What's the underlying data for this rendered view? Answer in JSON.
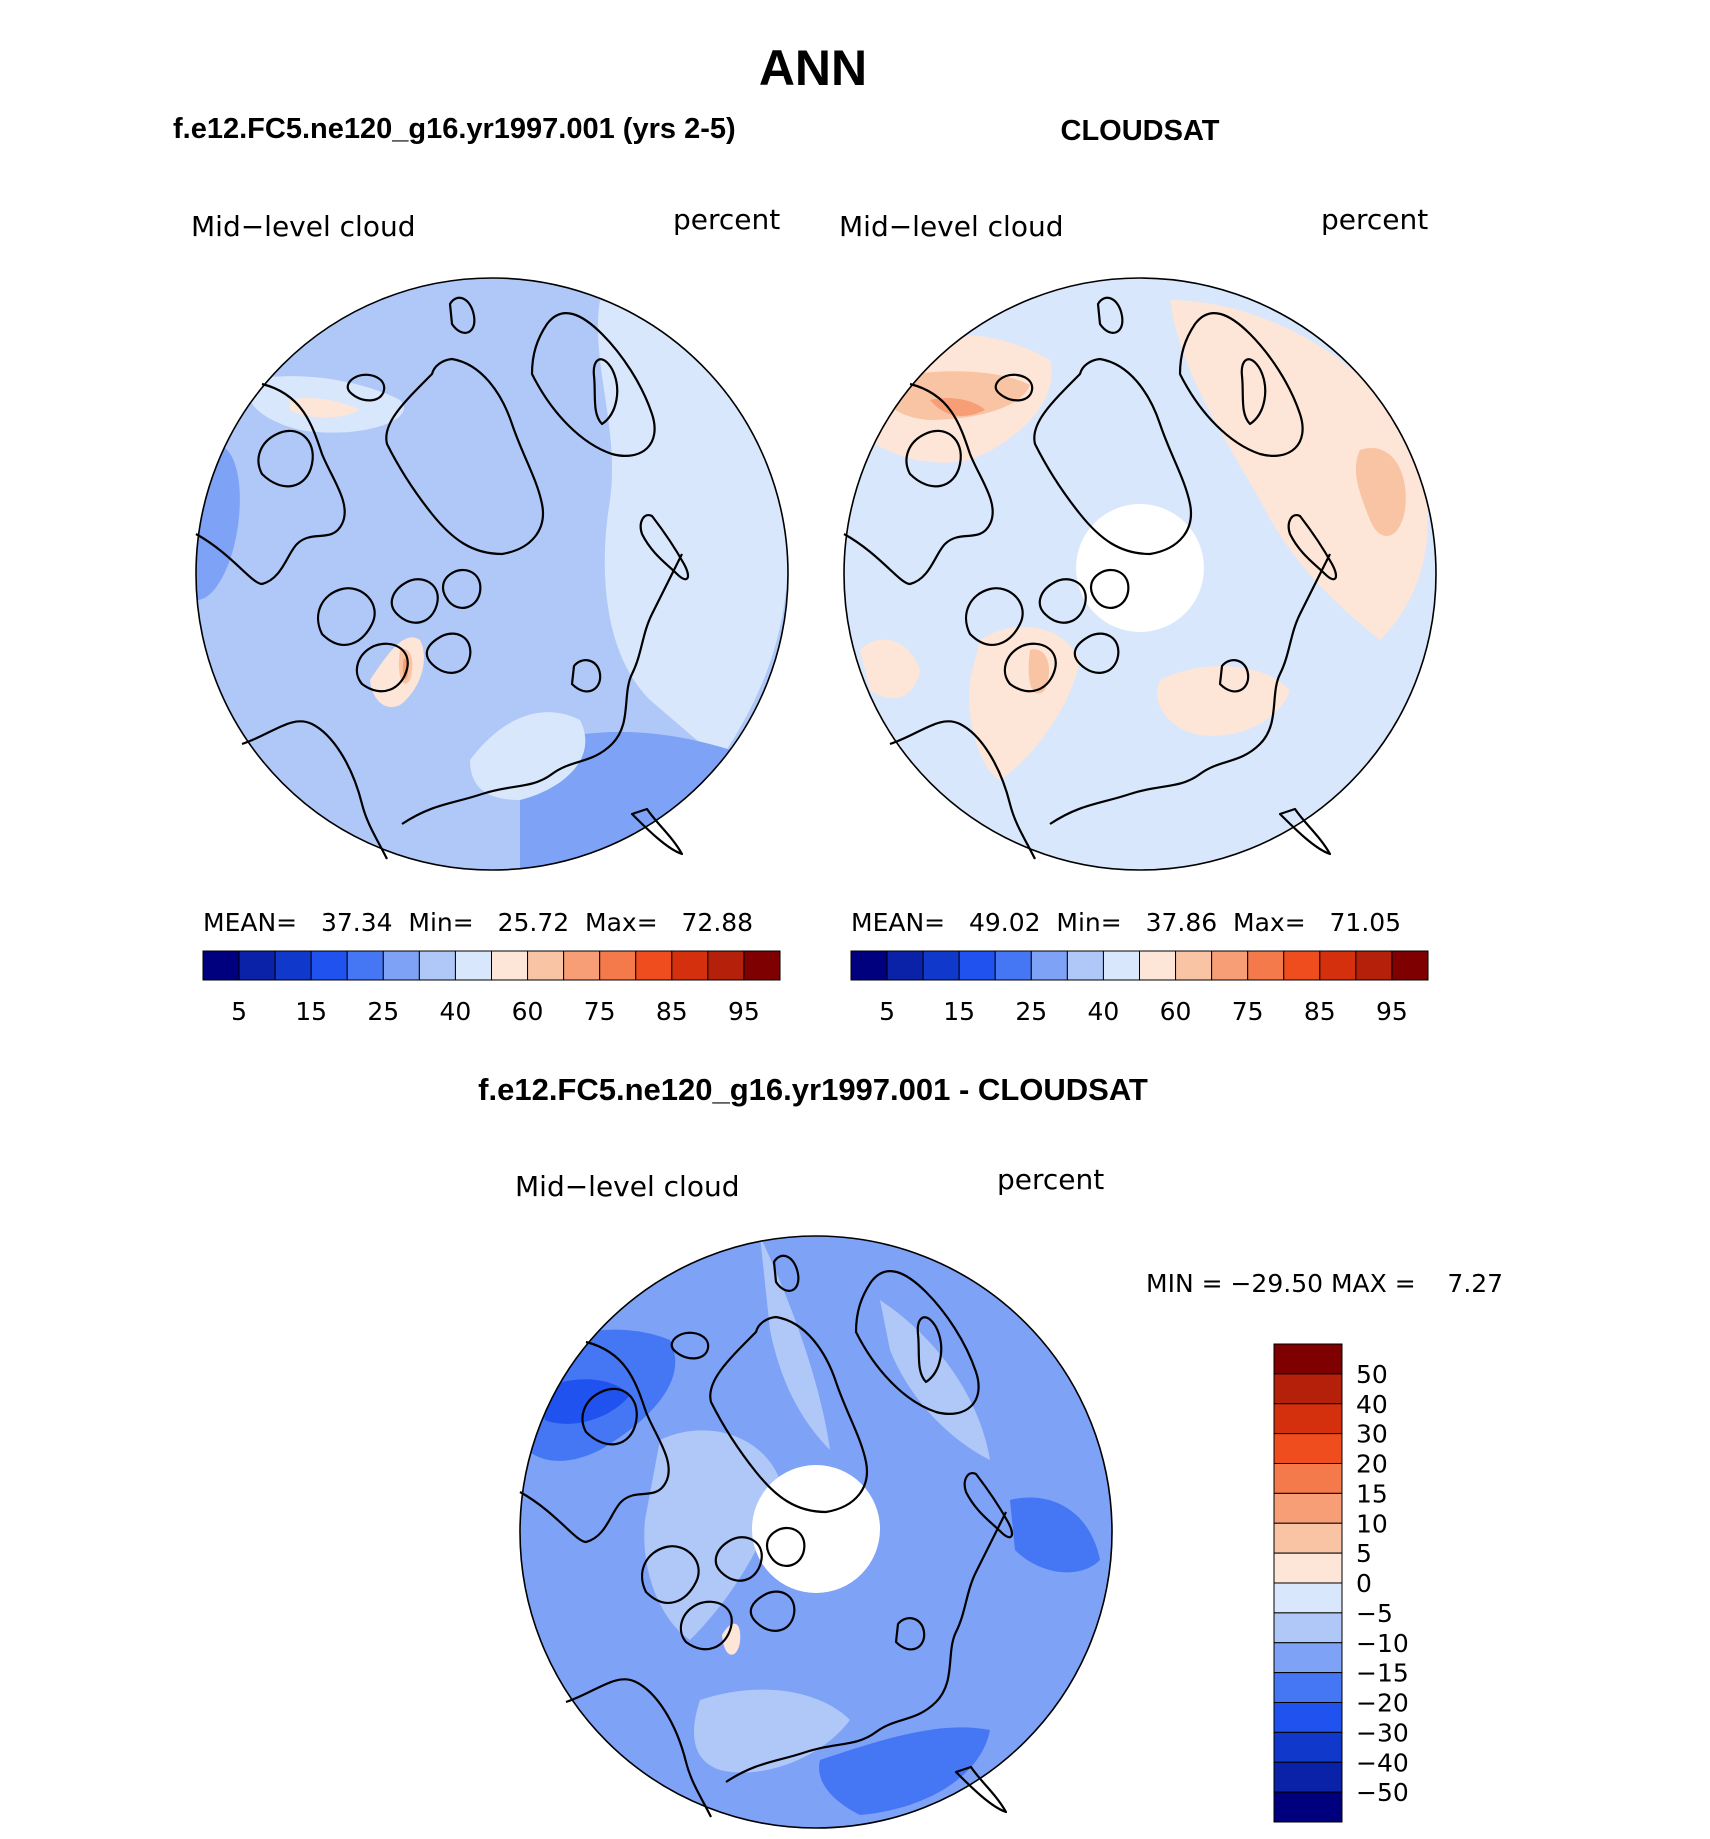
{
  "figure": {
    "season": "ANN"
  },
  "panels": [
    {
      "id": "model",
      "title": "f.e12.FC5.ne120_g16.yr1997.001 (yrs 2-5)",
      "left_label": "Mid−level cloud",
      "right_label": "percent",
      "stats_text": "MEAN=   37.34  Min=   25.72  Max=   72.88"
    },
    {
      "id": "obs",
      "title": "CLOUDSAT",
      "left_label": "Mid−level cloud",
      "right_label": "percent",
      "stats_text": "MEAN=   49.02  Min=   37.86  Max=   71.05"
    },
    {
      "id": "diff",
      "title": "f.e12.FC5.ne120_g16.yr1997.001 - CLOUDSAT",
      "left_label": "Mid−level cloud",
      "right_label": "percent",
      "stats_text": "MIN = −29.50 MAX =    7.27"
    }
  ],
  "chart_data": [
    {
      "type": "heatmap",
      "projection": "north polar stereographic",
      "variable": "Mid-level cloud",
      "units": "percent",
      "mean": 37.34,
      "min": 25.72,
      "max": 72.88,
      "colorbar": {
        "colors": [
          "#00007f",
          "#0a22a8",
          "#1039cc",
          "#1f52ee",
          "#4576f3",
          "#7ea2f6",
          "#b0c8f8",
          "#d8e7fb",
          "#fde6d8",
          "#f9c4a4",
          "#f79e76",
          "#f47a4b",
          "#f04d1e",
          "#d5300e",
          "#b5200a",
          "#7f0000"
        ],
        "tick_labels": [
          "5",
          "15",
          "25",
          "40",
          "60",
          "75",
          "85",
          "95"
        ]
      },
      "summary": "Mostly 30-40% over the Arctic and Pacific; 40-50% over northern Eurasia; 50-60% patches over Siberia coast; peak 60-75% over central Greenland."
    },
    {
      "type": "heatmap",
      "projection": "north polar stereographic",
      "variable": "Mid-level cloud",
      "units": "percent",
      "mean": 49.02,
      "min": 37.86,
      "max": 71.05,
      "colorbar": {
        "colors": [
          "#00007f",
          "#0a22a8",
          "#1039cc",
          "#1f52ee",
          "#4576f3",
          "#7ea2f6",
          "#b0c8f8",
          "#d8e7fb",
          "#fde6d8",
          "#f9c4a4",
          "#f79e76",
          "#f47a4b",
          "#f04d1e",
          "#d5300e",
          "#b5200a",
          "#7f0000"
        ],
        "tick_labels": [
          "5",
          "15",
          "25",
          "40",
          "60",
          "75",
          "85",
          "95"
        ]
      },
      "summary": "Mostly 40-50%; 50-60% over eastern Siberia, Eurasia interior, Greenland and the Atlantic; 60-75% over Alaska/Bering region; no data poleward of ~82N."
    },
    {
      "type": "heatmap",
      "projection": "north polar stereographic",
      "variable": "Mid-level cloud difference",
      "units": "percent",
      "min": -29.5,
      "max": 7.27,
      "colorbar": {
        "colors": [
          "#00007f",
          "#0a22a8",
          "#1039cc",
          "#1f52ee",
          "#4576f3",
          "#7ea2f6",
          "#b0c8f8",
          "#d8e7fb",
          "#fde6d8",
          "#f9c4a4",
          "#f79e76",
          "#f47a4b",
          "#f04d1e",
          "#d5300e",
          "#b5200a",
          "#7f0000"
        ],
        "tick_labels": [
          "50",
          "40",
          "30",
          "20",
          "15",
          "10",
          "5",
          "0",
          "−5",
          "−10",
          "−15",
          "−20",
          "−30",
          "−40",
          "−50"
        ]
      },
      "summary": "Mostly -10 to -20; down to -20/-30 over Alaska/Bering; -5 to -10 near the pole region and Greenland; slightly positive (0-5) over central Greenland."
    }
  ]
}
